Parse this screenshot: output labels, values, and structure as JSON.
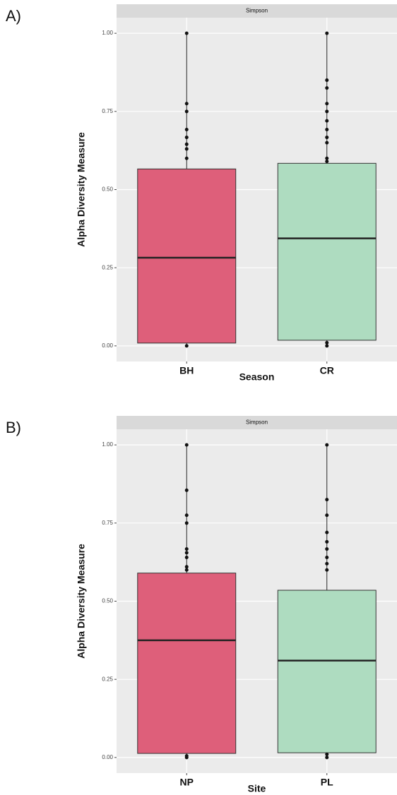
{
  "chart_data": [
    {
      "type": "box",
      "panel_label": "A)",
      "strip": "Simpson",
      "ylabel": "Alpha Diversity Measure",
      "xlabel": "Season",
      "categories": [
        "BH",
        "CR"
      ],
      "colors": [
        "#de5f7a",
        "#aedcc0"
      ],
      "boxes": [
        {
          "low": 0,
          "q1": 0.009,
          "median": 0.282,
          "q3": 0.566,
          "high": 1.0
        },
        {
          "low": 0,
          "q1": 0.018,
          "median": 0.344,
          "q3": 0.584,
          "high": 1.0
        }
      ],
      "points": [
        [
          1.0,
          0.775,
          0.75,
          0.692,
          0.667,
          0.645,
          0.63,
          0.6,
          0.0
        ],
        [
          1.0,
          0.85,
          0.825,
          0.775,
          0.75,
          0.72,
          0.692,
          0.667,
          0.65,
          0.6,
          0.59,
          0.0,
          0.01
        ]
      ],
      "ylim": [
        -0.05,
        1.05
      ],
      "yticks": [
        {
          "value": 0,
          "label": "0.00"
        },
        {
          "value": 0.25,
          "label": "0.25"
        },
        {
          "value": 0.5,
          "label": "0.50"
        },
        {
          "value": 0.75,
          "label": "0.75"
        },
        {
          "value": 1,
          "label": "1.00"
        }
      ],
      "grid": true
    },
    {
      "type": "box",
      "panel_label": "B)",
      "strip": "Simpson",
      "ylabel": "Alpha Diversity Measure",
      "xlabel": "Site",
      "categories": [
        "NP",
        "PL"
      ],
      "colors": [
        "#de5f7a",
        "#aedcc0"
      ],
      "boxes": [
        {
          "low": 0,
          "q1": 0.013,
          "median": 0.375,
          "q3": 0.59,
          "high": 1.0
        },
        {
          "low": 0,
          "q1": 0.015,
          "median": 0.31,
          "q3": 0.535,
          "high": 1.0
        }
      ],
      "points": [
        [
          1.0,
          0.855,
          0.775,
          0.75,
          0.667,
          0.655,
          0.64,
          0.61,
          0.6,
          0.0,
          0.005
        ],
        [
          1.0,
          0.825,
          0.775,
          0.72,
          0.69,
          0.667,
          0.64,
          0.62,
          0.6,
          0.0,
          0.01
        ]
      ],
      "ylim": [
        -0.05,
        1.05
      ],
      "yticks": [
        {
          "value": 0,
          "label": "0.00"
        },
        {
          "value": 0.25,
          "label": "0.25"
        },
        {
          "value": 0.5,
          "label": "0.50"
        },
        {
          "value": 0.75,
          "label": "0.75"
        },
        {
          "value": 1,
          "label": "1.00"
        }
      ],
      "grid": true
    }
  ]
}
